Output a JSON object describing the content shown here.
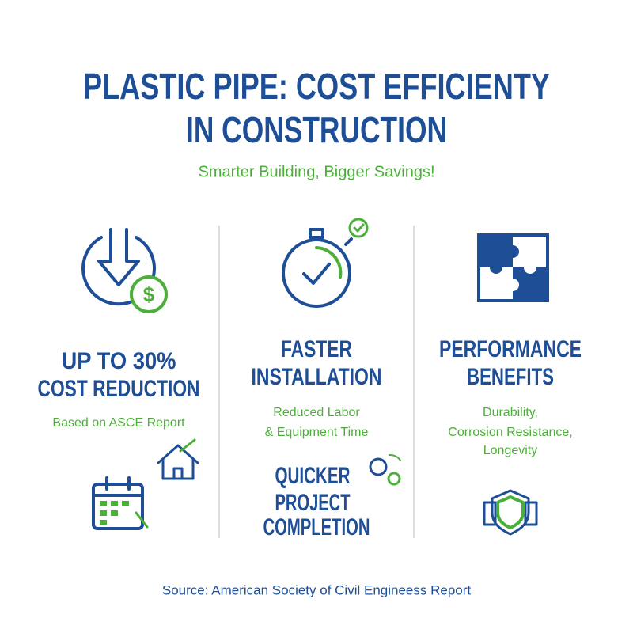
{
  "header": {
    "title_lines": [
      "PLASTIC PIPE: COST EFFICIENTY",
      "IN CONSTRUCTION"
    ],
    "subtitle": "Smarter Building, Bigger Savings!"
  },
  "columns": [
    {
      "heading_lines": [
        "UP TO 30%",
        "COST REDUCTION"
      ],
      "detail_lines": [
        "Based on ASCE Report"
      ]
    },
    {
      "heading_lines": [
        "FASTER",
        "INSTALLATION"
      ],
      "detail_lines": [
        "Reduced Labor",
        "& Equipment Time"
      ],
      "extra_lines": [
        "QUICKER",
        "PROJECT",
        "COMPLETION"
      ]
    },
    {
      "heading_lines": [
        "PERFORMANCE",
        "BENEFITS"
      ],
      "detail_lines": [
        "Durability,",
        "Corrosion Resistance,",
        "Longevity"
      ]
    }
  ],
  "footer": {
    "source": "Source: American Society of Civil Engineess Report"
  }
}
